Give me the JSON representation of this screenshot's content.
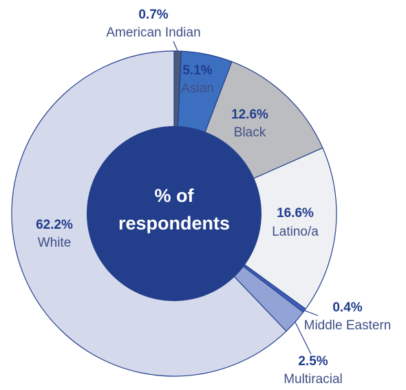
{
  "chart_data": {
    "type": "pie",
    "center_label": {
      "line1": "% of",
      "line2": "respondents"
    },
    "slices": [
      {
        "label": "American Indian",
        "value": 0.7,
        "value_label": "0.7%",
        "color": "#4a5a7a"
      },
      {
        "label": "Asian",
        "value": 5.1,
        "value_label": "5.1%",
        "color": "#3d6fc0"
      },
      {
        "label": "Black",
        "value": 12.6,
        "value_label": "12.6%",
        "color": "#bcbdc0"
      },
      {
        "label": "Latino/a",
        "value": 16.6,
        "value_label": "16.6%",
        "color": "#eff0f4"
      },
      {
        "label": "Middle Eastern",
        "value": 0.4,
        "value_label": "0.4%",
        "color": "#3e5eb5"
      },
      {
        "label": "Multiracial",
        "value": 2.5,
        "value_label": "2.5%",
        "color": "#94a3d6"
      },
      {
        "label": "White",
        "value": 62.2,
        "value_label": "62.2%",
        "color": "#d5d9ec"
      }
    ],
    "center_color": "#233f8c",
    "edge_color": "#233f8c",
    "text_color": "#213c8c"
  }
}
